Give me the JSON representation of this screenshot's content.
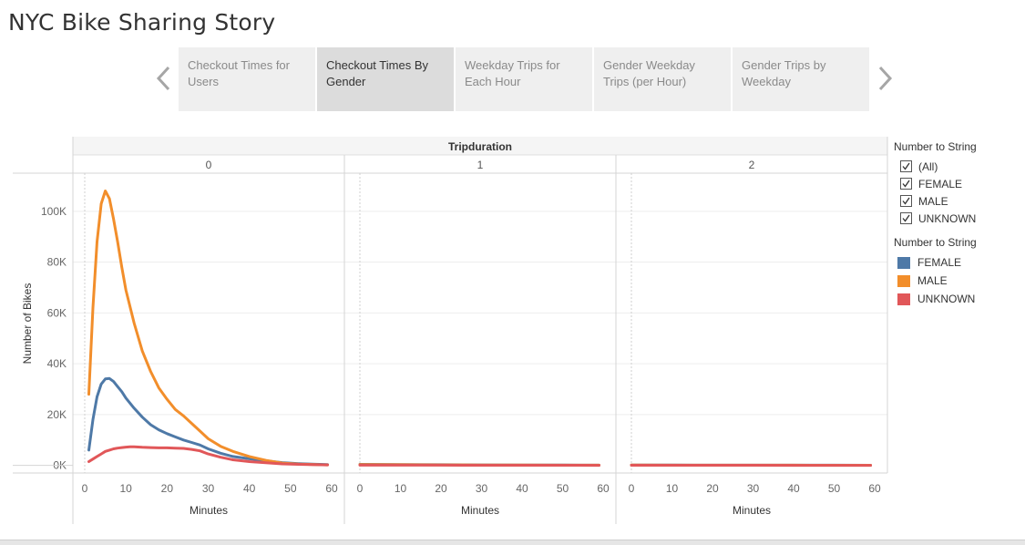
{
  "story": {
    "title": "NYC Bike Sharing Story"
  },
  "nav": {
    "tabs": [
      {
        "label": "Checkout Times for Users",
        "active": false
      },
      {
        "label": "Checkout Times By Gender",
        "active": true
      },
      {
        "label": "Weekday Trips for Each Hour",
        "active": false
      },
      {
        "label": "Gender Weekday Trips (per Hour)",
        "active": false
      },
      {
        "label": "Gender Trips by Weekday",
        "active": false
      }
    ],
    "prev_icon": "chevron-left-icon",
    "next_icon": "chevron-right-icon"
  },
  "legend": {
    "filter_title": "Number to String",
    "filter_items": [
      "(All)",
      "FEMALE",
      "MALE",
      "UNKNOWN"
    ],
    "color_title": "Number to String",
    "color_items": [
      {
        "label": "FEMALE",
        "color": "#4e79a7"
      },
      {
        "label": "MALE",
        "color": "#f28e2b"
      },
      {
        "label": "UNKNOWN",
        "color": "#e15759"
      }
    ]
  },
  "chart_data": {
    "type": "line",
    "title": "",
    "column_header": "Tripduration",
    "panels": [
      "0",
      "1",
      "2"
    ],
    "xlabel": "Minutes",
    "ylabel": "Number of Bikes",
    "xlim": [
      0,
      60
    ],
    "xticks": [
      0,
      10,
      20,
      30,
      40,
      50,
      60
    ],
    "ylim": [
      -3000,
      115000
    ],
    "yticks": [
      0,
      20000,
      40000,
      60000,
      80000,
      100000
    ],
    "ytick_labels": [
      "0K",
      "20K",
      "40K",
      "60K",
      "80K",
      "100K"
    ],
    "grid": true,
    "legend_position": "right",
    "series": [
      {
        "name": "FEMALE",
        "color": "#4e79a7",
        "panels": [
          {
            "x": [
              1,
              2,
              3,
              4,
              5,
              6,
              7,
              8,
              9,
              10,
              12,
              14,
              16,
              18,
              20,
              22,
              24,
              26,
              28,
              30,
              33,
              36,
              40,
              44,
              48,
              52,
              56,
              59
            ],
            "y": [
              6000,
              18000,
              27000,
              32000,
              34000,
              34200,
              33000,
              31000,
              29000,
              26500,
              22500,
              19000,
              16000,
              14000,
              12500,
              11200,
              10000,
              9000,
              8000,
              6500,
              4800,
              3500,
              2600,
              1800,
              1100,
              700,
              450,
              350
            ]
          },
          {
            "x": [
              0,
              10,
              20,
              30,
              40,
              50,
              59
            ],
            "y": [
              400,
              300,
              250,
              200,
              150,
              120,
              100
            ]
          },
          {
            "x": [
              0,
              10,
              20,
              30,
              40,
              50,
              59
            ],
            "y": [
              150,
              120,
              100,
              90,
              80,
              70,
              60
            ]
          }
        ]
      },
      {
        "name": "MALE",
        "color": "#f28e2b",
        "panels": [
          {
            "x": [
              1,
              2,
              3,
              4,
              5,
              6,
              7,
              8,
              9,
              10,
              12,
              14,
              16,
              18,
              20,
              22,
              24,
              26,
              28,
              30,
              33,
              36,
              40,
              44,
              48,
              52,
              56,
              59
            ],
            "y": [
              28000,
              62000,
              88000,
              103000,
              108000,
              105000,
              97000,
              88000,
              78000,
              69000,
              56000,
              45000,
              37000,
              30500,
              26000,
              22000,
              19500,
              16500,
              13500,
              10500,
              7500,
              5500,
              3500,
              2000,
              900,
              500,
              300,
              200
            ]
          },
          {
            "x": [
              0,
              10,
              20,
              30,
              40,
              50,
              59
            ],
            "y": [
              300,
              250,
              200,
              150,
              120,
              100,
              80
            ]
          },
          {
            "x": [
              0,
              10,
              20,
              30,
              40,
              50,
              59
            ],
            "y": [
              120,
              100,
              90,
              80,
              70,
              60,
              50
            ]
          }
        ]
      },
      {
        "name": "UNKNOWN",
        "color": "#e15759",
        "panels": [
          {
            "x": [
              1,
              2,
              3,
              4,
              5,
              6,
              7,
              8,
              9,
              10,
              11,
              12,
              14,
              16,
              18,
              20,
              22,
              24,
              26,
              28,
              30,
              33,
              36,
              40,
              44,
              48,
              52,
              56,
              59
            ],
            "y": [
              1500,
              2500,
              3500,
              4500,
              5500,
              6000,
              6500,
              6800,
              7000,
              7200,
              7300,
              7300,
              7100,
              7000,
              6900,
              6900,
              6800,
              6700,
              6300,
              5700,
              4500,
              3200,
              2200,
              1500,
              1000,
              600,
              400,
              250,
              200
            ]
          },
          {
            "x": [
              0,
              10,
              20,
              30,
              40,
              50,
              59
            ],
            "y": [
              100,
              80,
              70,
              60,
              50,
              40,
              30
            ]
          },
          {
            "x": [
              0,
              10,
              20,
              30,
              40,
              50,
              59
            ],
            "y": [
              60,
              50,
              40,
              35,
              30,
              25,
              20
            ]
          }
        ]
      }
    ]
  }
}
